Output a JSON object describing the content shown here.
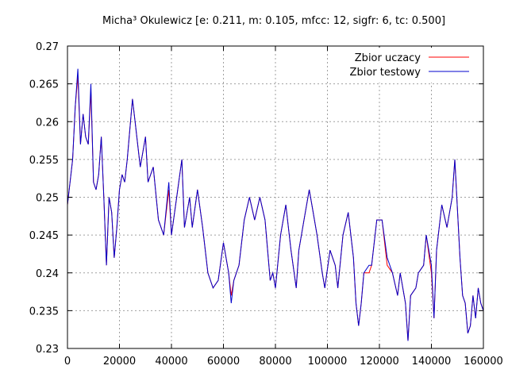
{
  "chart_data": {
    "type": "line",
    "title": "Micha³ Okulewicz [e: 0.211, m: 0.105, mfcc: 12, sigfr: 6, tc: 0.500]",
    "xlabel": "",
    "ylabel": "",
    "xlim": [
      0,
      160000
    ],
    "ylim": [
      0.23,
      0.27
    ],
    "xticks": [
      0,
      20000,
      40000,
      60000,
      80000,
      100000,
      120000,
      140000,
      160000
    ],
    "xtick_labels": [
      "0",
      "20000",
      "40000",
      "60000",
      "80000",
      "100000",
      "120000",
      "140000",
      "160000"
    ],
    "yticks": [
      0.23,
      0.235,
      0.24,
      0.245,
      0.25,
      0.255,
      0.26,
      0.265,
      0.27
    ],
    "ytick_labels": [
      "0.23",
      "0.235",
      "0.24",
      "0.245",
      "0.25",
      "0.255",
      "0.26",
      "0.265",
      "0.27"
    ],
    "grid": true,
    "legend_position": "top-right",
    "x": [
      0,
      2000,
      3000,
      4000,
      5000,
      6000,
      7000,
      8000,
      9000,
      10000,
      11000,
      12000,
      13000,
      14000,
      15000,
      16000,
      17000,
      18000,
      19000,
      20000,
      21000,
      22000,
      23000,
      25000,
      26000,
      28000,
      30000,
      31000,
      33000,
      35000,
      37000,
      39000,
      40000,
      42000,
      44000,
      45000,
      47000,
      48000,
      50000,
      52000,
      54000,
      56000,
      58000,
      60000,
      62000,
      63000,
      64000,
      66000,
      68000,
      70000,
      72000,
      74000,
      76000,
      78000,
      79000,
      80000,
      82000,
      84000,
      86000,
      88000,
      89000,
      91000,
      93000,
      94000,
      96000,
      98000,
      99000,
      101000,
      103000,
      104000,
      106000,
      108000,
      110000,
      111000,
      112000,
      113000,
      114000,
      116000,
      117000,
      119000,
      121000,
      123000,
      125000,
      127000,
      128000,
      130000,
      131000,
      132000,
      134000,
      135000,
      137000,
      138000,
      140000,
      141000,
      142000,
      144000,
      146000,
      148000,
      149000,
      151000,
      152000,
      153000,
      154000,
      155000,
      156000,
      157000,
      158000,
      159000,
      160000
    ],
    "series": [
      {
        "name": "Zbior uczacy",
        "color": "#ff0000",
        "values": [
          0.249,
          0.255,
          0.262,
          0.266,
          0.257,
          0.261,
          0.258,
          0.257,
          0.264,
          0.252,
          0.251,
          0.253,
          0.258,
          0.25,
          0.241,
          0.25,
          0.248,
          0.242,
          0.246,
          0.251,
          0.253,
          0.252,
          0.255,
          0.263,
          0.26,
          0.254,
          0.258,
          0.252,
          0.254,
          0.247,
          0.245,
          0.251,
          0.245,
          0.25,
          0.255,
          0.246,
          0.25,
          0.246,
          0.251,
          0.246,
          0.24,
          0.238,
          0.239,
          0.244,
          0.24,
          0.237,
          0.239,
          0.241,
          0.247,
          0.25,
          0.247,
          0.25,
          0.247,
          0.239,
          0.24,
          0.238,
          0.245,
          0.249,
          0.243,
          0.238,
          0.243,
          0.247,
          0.251,
          0.249,
          0.245,
          0.24,
          0.238,
          0.243,
          0.241,
          0.238,
          0.245,
          0.248,
          0.242,
          0.236,
          0.233,
          0.236,
          0.24,
          0.24,
          0.241,
          0.247,
          0.247,
          0.241,
          0.24,
          0.237,
          0.24,
          0.236,
          0.231,
          0.237,
          0.238,
          0.24,
          0.241,
          0.245,
          0.24,
          0.234,
          0.243,
          0.249,
          0.246,
          0.25,
          0.255,
          0.242,
          0.237,
          0.236,
          0.232,
          0.233,
          0.237,
          0.234,
          0.238,
          0.236,
          0.235
        ]
      },
      {
        "name": "Zbior testowy",
        "color": "#0000cc",
        "values": [
          0.249,
          0.255,
          0.262,
          0.267,
          0.257,
          0.261,
          0.258,
          0.257,
          0.265,
          0.252,
          0.251,
          0.253,
          0.258,
          0.25,
          0.241,
          0.25,
          0.248,
          0.242,
          0.246,
          0.251,
          0.253,
          0.252,
          0.255,
          0.263,
          0.26,
          0.254,
          0.258,
          0.252,
          0.254,
          0.247,
          0.245,
          0.252,
          0.245,
          0.25,
          0.255,
          0.246,
          0.25,
          0.246,
          0.251,
          0.246,
          0.24,
          0.238,
          0.239,
          0.244,
          0.24,
          0.236,
          0.239,
          0.241,
          0.247,
          0.25,
          0.247,
          0.25,
          0.247,
          0.239,
          0.24,
          0.238,
          0.245,
          0.249,
          0.243,
          0.238,
          0.243,
          0.247,
          0.251,
          0.249,
          0.245,
          0.24,
          0.238,
          0.243,
          0.241,
          0.238,
          0.245,
          0.248,
          0.242,
          0.236,
          0.233,
          0.236,
          0.24,
          0.241,
          0.241,
          0.247,
          0.247,
          0.242,
          0.24,
          0.237,
          0.24,
          0.236,
          0.231,
          0.237,
          0.238,
          0.24,
          0.241,
          0.245,
          0.241,
          0.234,
          0.243,
          0.249,
          0.246,
          0.25,
          0.255,
          0.242,
          0.237,
          0.236,
          0.232,
          0.233,
          0.237,
          0.234,
          0.238,
          0.236,
          0.235
        ]
      }
    ]
  }
}
